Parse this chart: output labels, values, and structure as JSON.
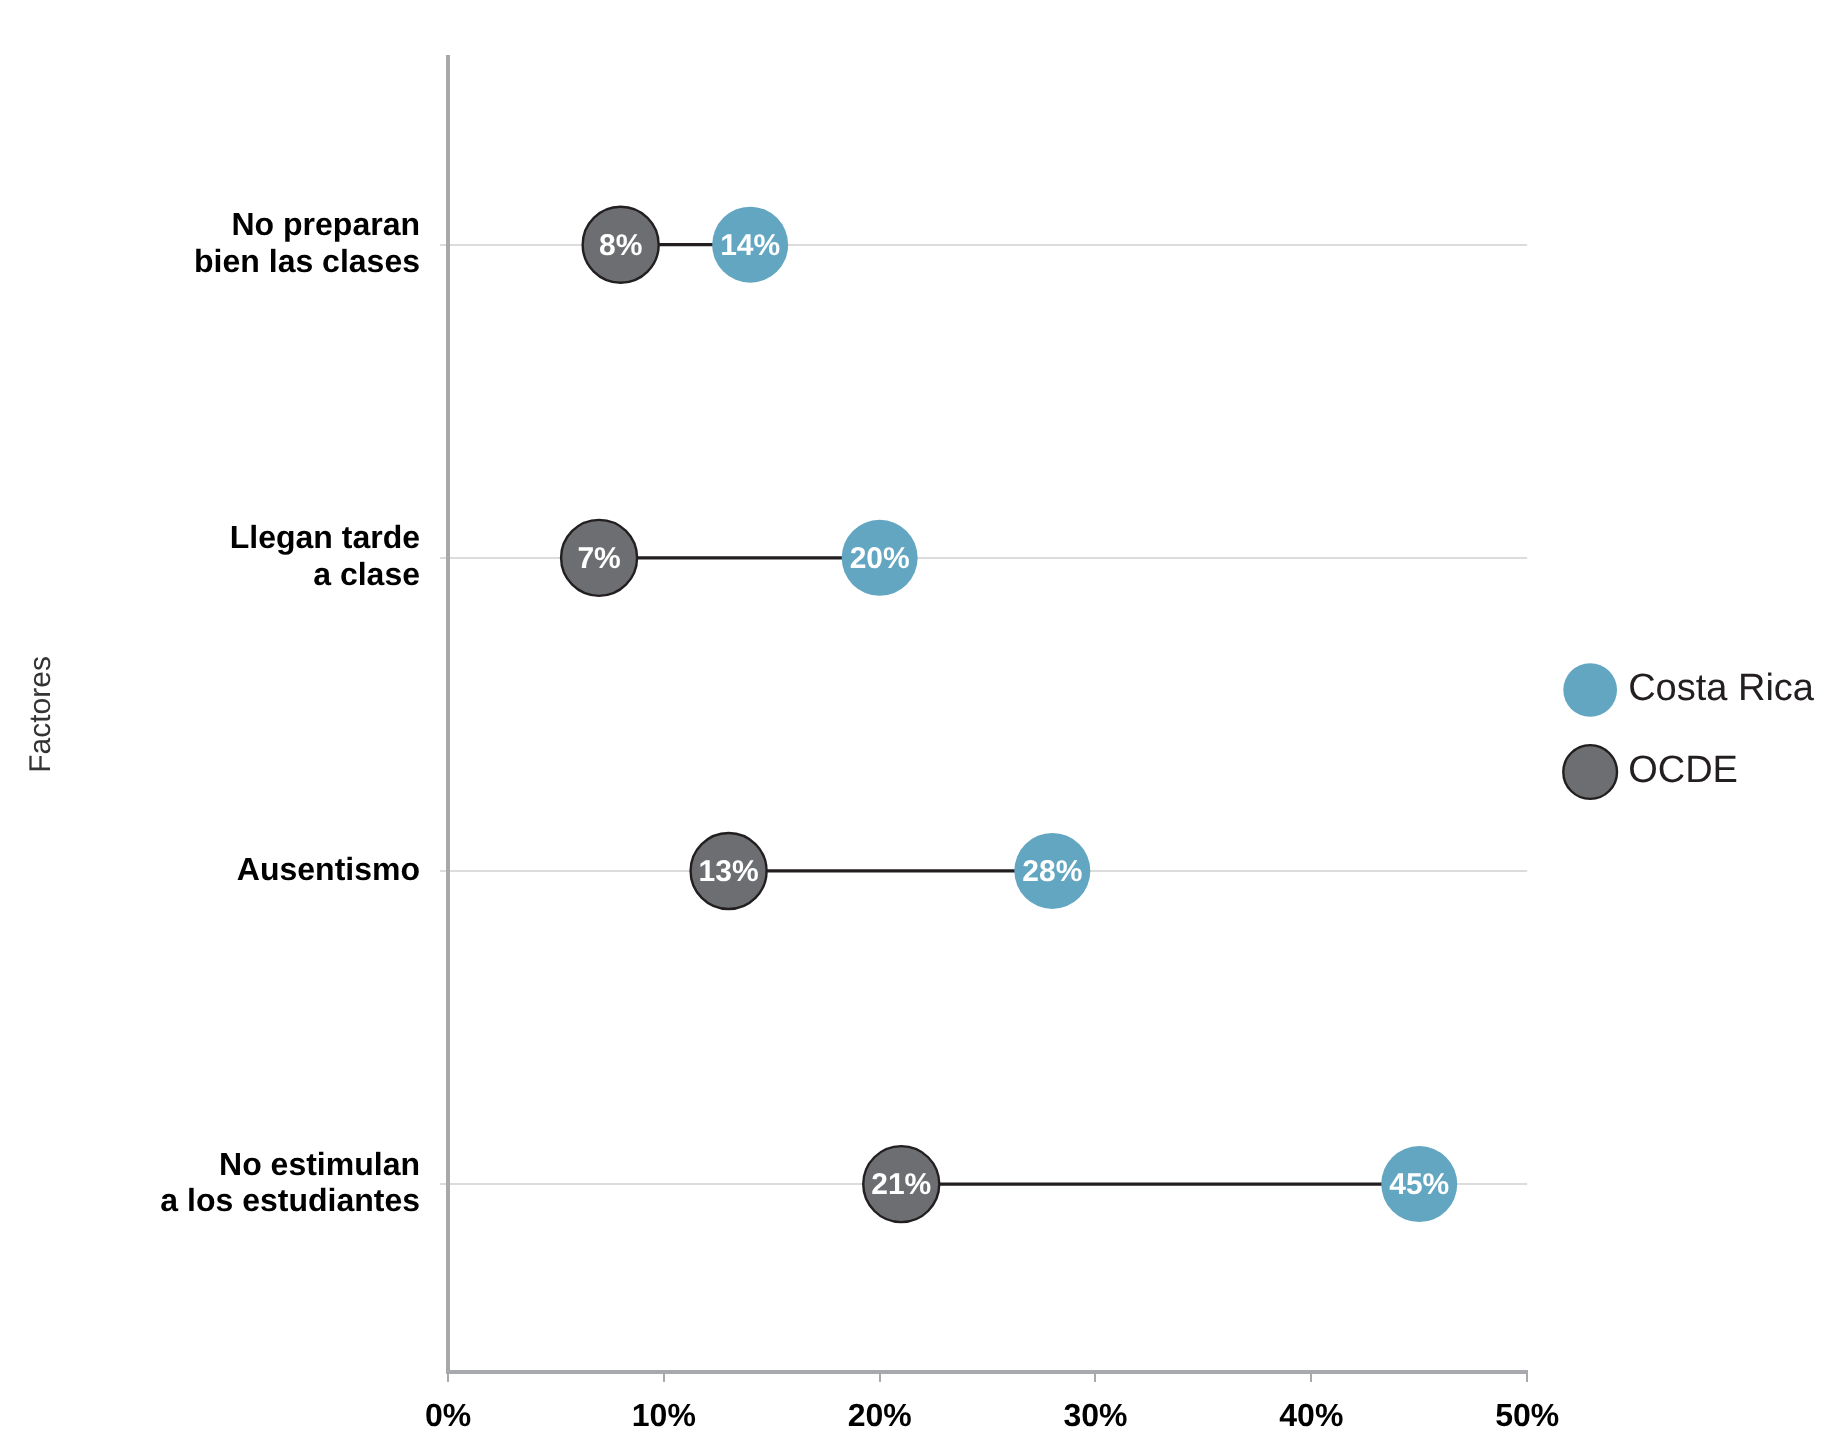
{
  "chart_data": {
    "type": "scatter",
    "orientation": "horizontal",
    "ylabel": "Factores",
    "categories": [
      "No preparan\nbien las clases",
      "Llegan tarde\na clase",
      "Ausentismo",
      "No estimulan\na los estudiantes"
    ],
    "series": [
      {
        "name": "Costa Rica",
        "color": "#63a6c1",
        "values": [
          14,
          20,
          28,
          45
        ],
        "value_labels": [
          "14%",
          "20%",
          "28%",
          "45%"
        ]
      },
      {
        "name": "OCDE",
        "color": "#6d6e71",
        "values": [
          8,
          7,
          13,
          21
        ],
        "value_labels": [
          "8%",
          "7%",
          "13%",
          "21%"
        ]
      }
    ],
    "xlim": [
      0,
      50
    ],
    "xticks": [
      {
        "value": 0,
        "label": "0%"
      },
      {
        "value": 10,
        "label": "10%"
      },
      {
        "value": 20,
        "label": "20%"
      },
      {
        "value": 30,
        "label": "30%"
      },
      {
        "value": 40,
        "label": "40%"
      },
      {
        "value": 50,
        "label": "50%"
      }
    ],
    "grid": "y",
    "legend": "right",
    "marker": "circle"
  }
}
